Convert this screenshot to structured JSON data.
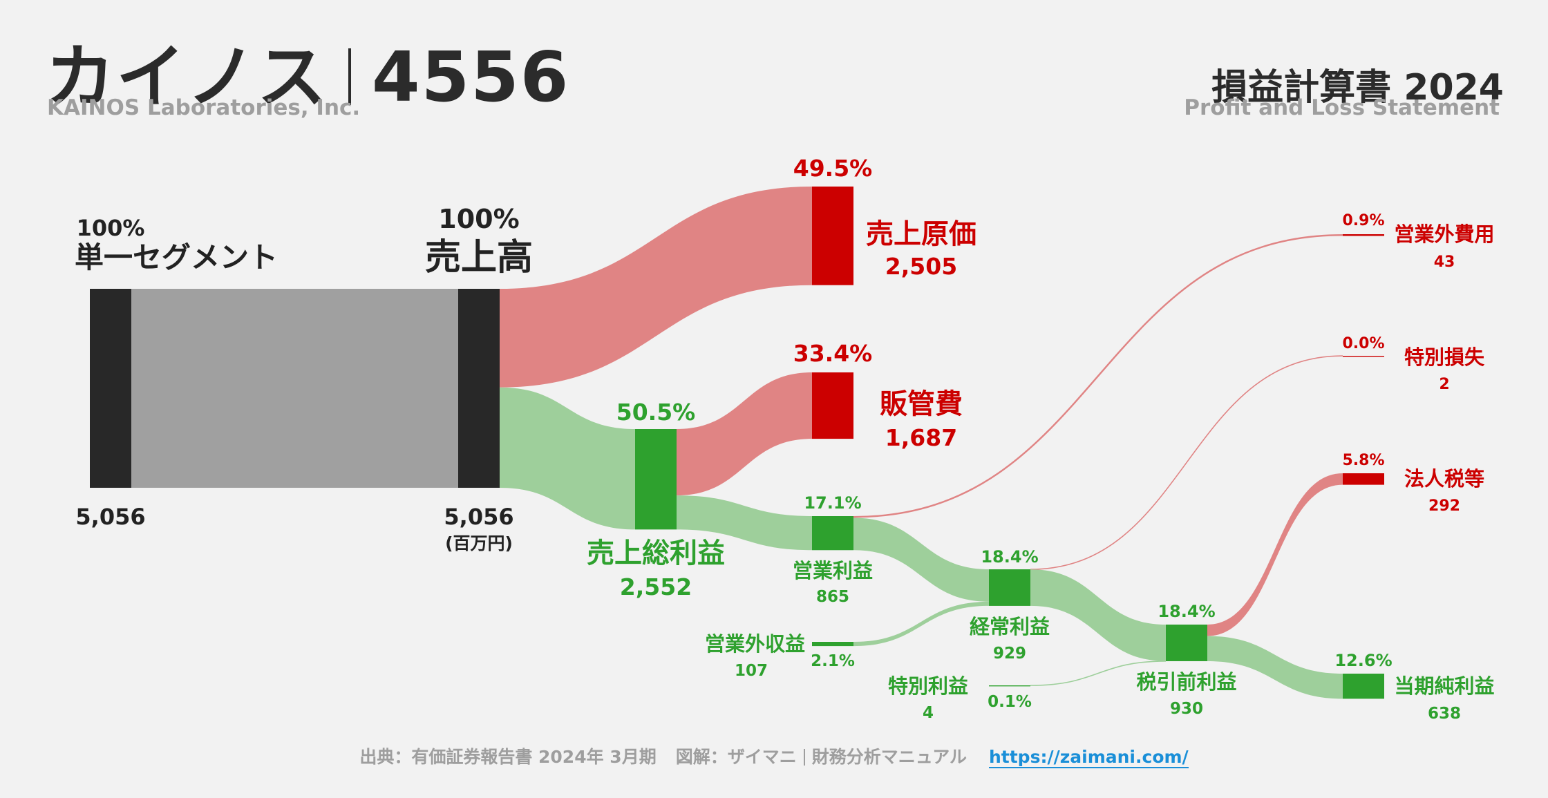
{
  "header": {
    "company_name": "カイノス",
    "ticker": "4556",
    "company_en": "KAINOS Laboratories, Inc.",
    "statement_title": "損益計算書 2024",
    "statement_en": "Profit and Loss Statement"
  },
  "footer": {
    "source": "出典：有価証券報告書 2024年 3月期",
    "credit_prefix": "図解：ザイマニ",
    "credit_suffix": "財務分析マニュアル",
    "url": "https://zaimani.com/"
  },
  "colors": {
    "dark": "#282828",
    "gray_flow": "#a0a0a0",
    "red": "#cc0000",
    "red_flow": "#e08484",
    "green": "#2ea12e",
    "green_flow": "#9ecf9b"
  },
  "chart_data": {
    "type": "sankey",
    "unit": "(百万円)",
    "nodes": [
      {
        "id": "segment",
        "label": "単一セグメント",
        "value": 5056,
        "value_label": "5,056",
        "pct": "100%",
        "type": "neutral"
      },
      {
        "id": "revenue",
        "label": "売上高",
        "value": 5056,
        "value_label": "5,056",
        "pct": "100%",
        "type": "neutral"
      },
      {
        "id": "cogs",
        "label": "売上原価",
        "value": 2505,
        "value_label": "2,505",
        "pct": "49.5%",
        "type": "cost"
      },
      {
        "id": "gross",
        "label": "売上総利益",
        "value": 2552,
        "value_label": "2,552",
        "pct": "50.5%",
        "type": "profit"
      },
      {
        "id": "sga",
        "label": "販管費",
        "value": 1687,
        "value_label": "1,687",
        "pct": "33.4%",
        "type": "cost"
      },
      {
        "id": "operating",
        "label": "営業利益",
        "value": 865,
        "value_label": "865",
        "pct": "17.1%",
        "type": "profit"
      },
      {
        "id": "nonop_income",
        "label": "営業外収益",
        "value": 107,
        "value_label": "107",
        "pct": "2.1%",
        "type": "profit"
      },
      {
        "id": "nonop_expense",
        "label": "営業外費用",
        "value": 43,
        "value_label": "43",
        "pct": "0.9%",
        "type": "cost"
      },
      {
        "id": "ordinary",
        "label": "経常利益",
        "value": 929,
        "value_label": "929",
        "pct": "18.4%",
        "type": "profit"
      },
      {
        "id": "extra_income",
        "label": "特別利益",
        "value": 4,
        "value_label": "4",
        "pct": "0.1%",
        "type": "profit"
      },
      {
        "id": "extra_loss",
        "label": "特別損失",
        "value": 2,
        "value_label": "2",
        "pct": "0.0%",
        "type": "cost"
      },
      {
        "id": "pretax",
        "label": "税引前利益",
        "value": 930,
        "value_label": "930",
        "pct": "18.4%",
        "type": "profit"
      },
      {
        "id": "tax",
        "label": "法人税等",
        "value": 292,
        "value_label": "292",
        "pct": "5.8%",
        "type": "cost"
      },
      {
        "id": "net",
        "label": "当期純利益",
        "value": 638,
        "value_label": "638",
        "pct": "12.6%",
        "type": "profit"
      }
    ],
    "links": [
      {
        "source": "segment",
        "target": "revenue",
        "value": 5056
      },
      {
        "source": "revenue",
        "target": "cogs",
        "value": 2505
      },
      {
        "source": "revenue",
        "target": "gross",
        "value": 2552
      },
      {
        "source": "gross",
        "target": "sga",
        "value": 1687
      },
      {
        "source": "gross",
        "target": "operating",
        "value": 865
      },
      {
        "source": "operating",
        "target": "nonop_expense",
        "value": 43
      },
      {
        "source": "operating",
        "target": "ordinary",
        "value": 822
      },
      {
        "source": "nonop_income",
        "target": "ordinary",
        "value": 107
      },
      {
        "source": "ordinary",
        "target": "extra_loss",
        "value": 2
      },
      {
        "source": "ordinary",
        "target": "pretax",
        "value": 927
      },
      {
        "source": "extra_income",
        "target": "pretax",
        "value": 4
      },
      {
        "source": "pretax",
        "target": "tax",
        "value": 292
      },
      {
        "source": "pretax",
        "target": "net",
        "value": 638
      }
    ]
  }
}
